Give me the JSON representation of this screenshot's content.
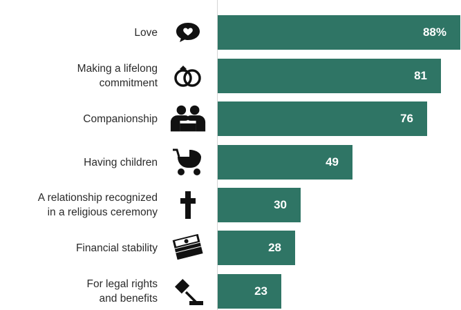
{
  "chart_data": {
    "type": "bar",
    "orientation": "horizontal",
    "categories": [
      "Love",
      "Making a lifelong commitment",
      "Companionship",
      "Having children",
      "A relationship recognized in a religious ceremony",
      "Financial stability",
      "For legal rights and benefits"
    ],
    "label_lines": [
      [
        "Love"
      ],
      [
        "Making a lifelong",
        "commitment"
      ],
      [
        "Companionship"
      ],
      [
        "Having children"
      ],
      [
        "A relationship recognized",
        "in a religious ceremony"
      ],
      [
        "Financial stability"
      ],
      [
        "For legal rights",
        "and benefits"
      ]
    ],
    "values": [
      88,
      81,
      76,
      49,
      30,
      28,
      23
    ],
    "value_labels": [
      "88%",
      "81",
      "76",
      "49",
      "30",
      "28",
      "23"
    ],
    "icons": [
      "heart-speech-icon",
      "wedding-rings-icon",
      "couple-icon",
      "baby-stroller-icon",
      "cross-icon",
      "money-stack-icon",
      "gavel-icon"
    ],
    "bar_color": "#2f7565",
    "xlim": [
      0,
      100
    ],
    "grid": false
  }
}
